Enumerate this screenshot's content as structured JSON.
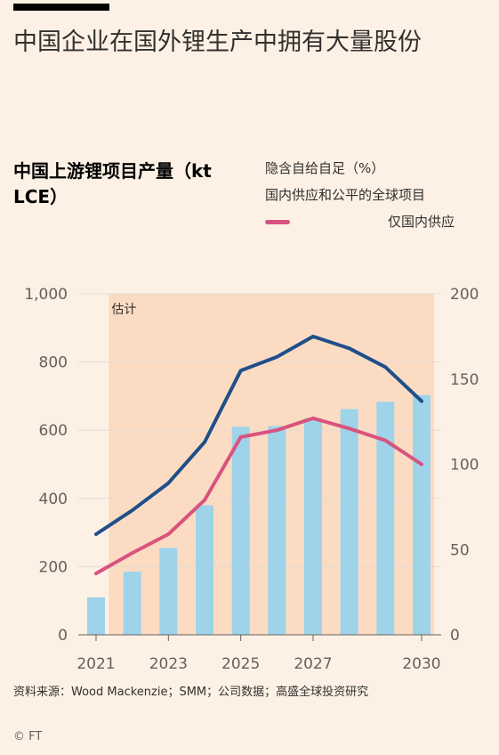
{
  "header": {
    "title": "中国企业在国外锂生产中拥有大量股份"
  },
  "chart_data": {
    "type": "bar",
    "subtitle": "中国上游锂项目产量（kt LCE）",
    "x": [
      2021,
      2022,
      2023,
      2024,
      2025,
      2026,
      2027,
      2028,
      2029,
      2030
    ],
    "xticks": [
      "2021",
      "2023",
      "2025",
      "2027",
      "2030"
    ],
    "xtick_years": [
      2021,
      2023,
      2025,
      2027,
      2030
    ],
    "left_axis": {
      "range": [
        0,
        1000
      ],
      "ticks": [
        "1,000",
        "800",
        "600",
        "400",
        "200",
        "0"
      ],
      "tick_values": [
        1000,
        800,
        600,
        400,
        200,
        0
      ]
    },
    "right_axis": {
      "title": "隐含自给自足（%）",
      "range": [
        0,
        200
      ],
      "ticks": [
        "200",
        "150",
        "100",
        "50",
        "0"
      ],
      "tick_values": [
        200,
        150,
        100,
        50,
        0
      ]
    },
    "estimate_label": "估计",
    "estimate_start": 2022,
    "bars": {
      "color": "#9ed3ea",
      "values": [
        110,
        185,
        255,
        380,
        610,
        612,
        635,
        662,
        683,
        703
      ]
    },
    "series": [
      {
        "name": "国内供应和公平的全球项目",
        "color": "#1f4f8a",
        "values": [
          59,
          73,
          89,
          113,
          155,
          163,
          175,
          168,
          157,
          137
        ]
      },
      {
        "name": "仅国内供应",
        "color": "#d9537f",
        "values": [
          36,
          48,
          59,
          79,
          116,
          120,
          127,
          121,
          114,
          100
        ]
      }
    ],
    "grid": true,
    "colors": {
      "estimate_band": "#fbdcc3",
      "grid": "#e6d9ce",
      "axis_text": "#66605c"
    }
  },
  "footer": {
    "source": "资料来源：Wood Mackenzie；SMM；公司数据；高盛全球投资研究",
    "copyright": "© FT"
  }
}
